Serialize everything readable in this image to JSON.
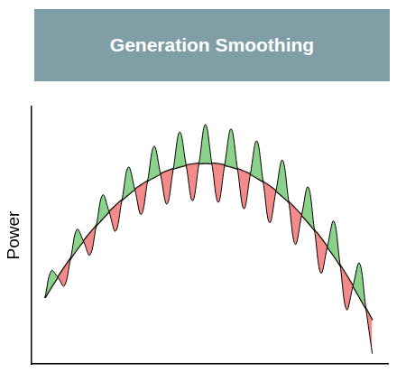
{
  "chart_data": {
    "type": "line",
    "title": "Generation Smoothing",
    "y_label": "Power",
    "x": [
      3.8,
      5.6,
      7.4,
      9.2,
      11.0,
      12.8,
      14.6,
      16.4,
      18.2,
      20.0,
      21.8,
      23.6,
      25.4,
      27.2,
      29.0,
      30.8,
      32.6,
      34.4,
      36.2,
      38.0,
      39.8,
      41.6,
      43.4,
      45.2,
      47.0,
      48.8,
      50.6,
      52.4,
      54.2,
      56.0,
      57.8,
      59.6,
      61.4,
      63.2,
      65.0,
      66.8,
      68.6,
      70.4,
      72.2,
      74.0,
      75.8,
      77.6,
      79.4,
      81.2,
      83.0,
      84.8,
      86.6,
      88.4,
      90.2,
      92.0,
      93.8,
      95.6
    ],
    "series": [
      {
        "color": "#000000",
        "values": [
          25.7,
          36.2,
          33.7,
          30.3,
          41.0,
          52.3,
          47.7,
          42.3,
          53.7,
          65.7,
          59.1,
          51.6,
          63.7,
          76.5,
          67.8,
          58.1,
          71.1,
          84.6,
          73.8,
          62.1,
          75.8,
          90.1,
          77.2,
          63.4,
          77.9,
          93.0,
          77.9,
          62.8,
          77.2,
          91.3,
          75.8,
          60.3,
          73.7,
          86.7,
          70.8,
          54.9,
          67.2,
          79.2,
          62.9,
          46.5,
          57.8,
          68.8,
          52.0,
          35.3,
          45.5,
          55.5,
          38.3,
          21.1,
          30.3,
          39.2,
          21.6,
          4.0
        ]
      },
      {
        "color": "#000000",
        "values": [
          25.7,
          29.8,
          33.7,
          37.4,
          41.0,
          44.5,
          47.7,
          50.8,
          53.7,
          56.5,
          59.1,
          61.5,
          63.7,
          65.8,
          67.8,
          69.5,
          71.1,
          72.5,
          73.8,
          74.9,
          75.8,
          76.6,
          77.2,
          77.6,
          77.9,
          78.0,
          77.9,
          77.7,
          77.2,
          76.6,
          75.8,
          74.8,
          73.7,
          72.3,
          70.8,
          69.1,
          67.2,
          65.1,
          62.9,
          60.4,
          57.8,
          55.0,
          52.0,
          48.9,
          45.5,
          42.0,
          38.3,
          34.4,
          30.3,
          26.0,
          21.6,
          17.0
        ]
      }
    ],
    "xlim": [
      0,
      100
    ],
    "ylim": [
      0,
      100
    ],
    "tick_labels": false,
    "grid": false
  }
}
